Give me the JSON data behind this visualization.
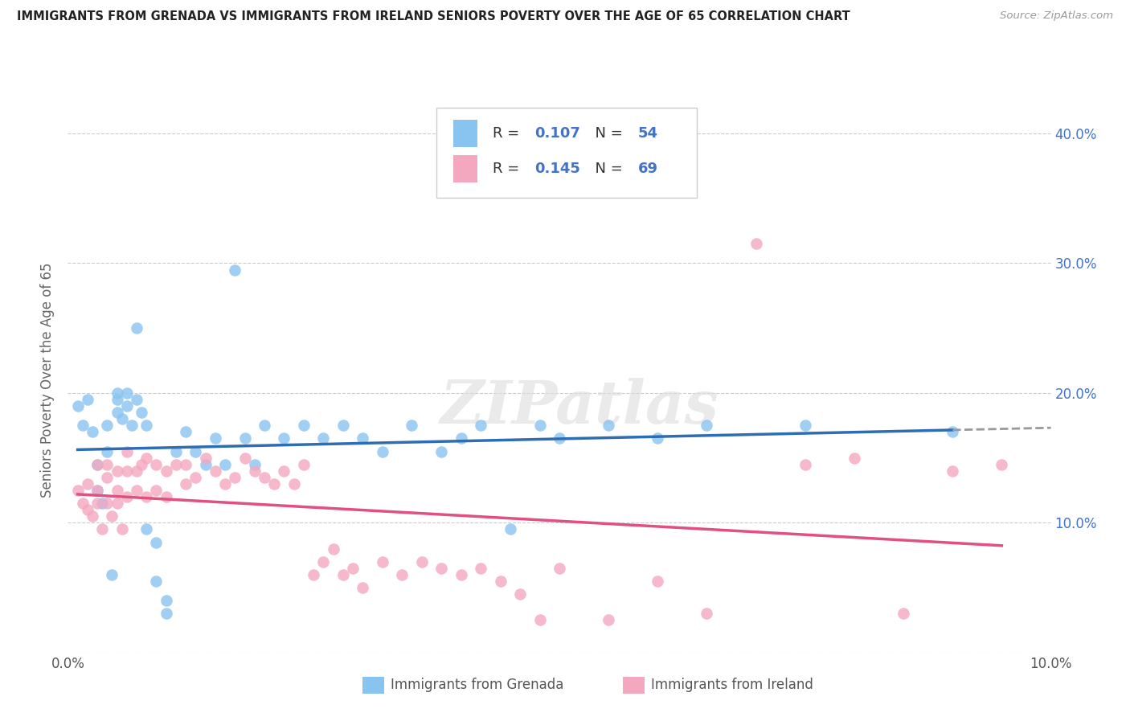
{
  "title": "IMMIGRANTS FROM GRENADA VS IMMIGRANTS FROM IRELAND SENIORS POVERTY OVER THE AGE OF 65 CORRELATION CHART",
  "source": "Source: ZipAtlas.com",
  "ylabel": "Seniors Poverty Over the Age of 65",
  "xlim": [
    0.0,
    0.1
  ],
  "ylim": [
    0.0,
    0.42
  ],
  "ytick_vals": [
    0.0,
    0.1,
    0.2,
    0.3,
    0.4
  ],
  "xtick_vals": [
    0.0,
    0.02,
    0.04,
    0.06,
    0.08,
    0.1
  ],
  "xtick_labels": [
    "0.0%",
    "",
    "",
    "",
    "",
    "10.0%"
  ],
  "right_ytick_labels": [
    "",
    "10.0%",
    "20.0%",
    "30.0%",
    "40.0%"
  ],
  "grenada_color": "#89C4F0",
  "ireland_color": "#F4A8C0",
  "grenada_R": 0.107,
  "grenada_N": 54,
  "ireland_R": 0.145,
  "ireland_N": 69,
  "grenada_line_color": "#2E6DB4",
  "ireland_line_color": "#E05080",
  "trend_dash_color": "#999999",
  "watermark": "ZIPatlas",
  "grenada_x": [
    0.001,
    0.0015,
    0.002,
    0.0025,
    0.003,
    0.003,
    0.0035,
    0.004,
    0.004,
    0.0045,
    0.005,
    0.005,
    0.005,
    0.0055,
    0.006,
    0.006,
    0.0065,
    0.007,
    0.007,
    0.0075,
    0.008,
    0.008,
    0.009,
    0.009,
    0.01,
    0.01,
    0.011,
    0.012,
    0.013,
    0.014,
    0.015,
    0.016,
    0.017,
    0.018,
    0.019,
    0.02,
    0.022,
    0.024,
    0.026,
    0.028,
    0.03,
    0.032,
    0.035,
    0.038,
    0.04,
    0.042,
    0.045,
    0.048,
    0.05,
    0.055,
    0.06,
    0.065,
    0.075,
    0.09
  ],
  "grenada_y": [
    0.19,
    0.175,
    0.195,
    0.17,
    0.145,
    0.125,
    0.115,
    0.175,
    0.155,
    0.06,
    0.2,
    0.195,
    0.185,
    0.18,
    0.2,
    0.19,
    0.175,
    0.25,
    0.195,
    0.185,
    0.175,
    0.095,
    0.085,
    0.055,
    0.04,
    0.03,
    0.155,
    0.17,
    0.155,
    0.145,
    0.165,
    0.145,
    0.295,
    0.165,
    0.145,
    0.175,
    0.165,
    0.175,
    0.165,
    0.175,
    0.165,
    0.155,
    0.175,
    0.155,
    0.165,
    0.175,
    0.095,
    0.175,
    0.165,
    0.175,
    0.165,
    0.175,
    0.175,
    0.17
  ],
  "ireland_x": [
    0.001,
    0.0015,
    0.002,
    0.002,
    0.0025,
    0.003,
    0.003,
    0.003,
    0.0035,
    0.004,
    0.004,
    0.004,
    0.0045,
    0.005,
    0.005,
    0.005,
    0.0055,
    0.006,
    0.006,
    0.006,
    0.007,
    0.007,
    0.0075,
    0.008,
    0.008,
    0.009,
    0.009,
    0.01,
    0.01,
    0.011,
    0.012,
    0.012,
    0.013,
    0.014,
    0.015,
    0.016,
    0.017,
    0.018,
    0.019,
    0.02,
    0.021,
    0.022,
    0.023,
    0.024,
    0.025,
    0.026,
    0.027,
    0.028,
    0.029,
    0.03,
    0.032,
    0.034,
    0.036,
    0.038,
    0.04,
    0.042,
    0.044,
    0.046,
    0.048,
    0.05,
    0.055,
    0.06,
    0.065,
    0.07,
    0.075,
    0.08,
    0.085,
    0.09,
    0.095
  ],
  "ireland_y": [
    0.125,
    0.115,
    0.13,
    0.11,
    0.105,
    0.145,
    0.125,
    0.115,
    0.095,
    0.145,
    0.135,
    0.115,
    0.105,
    0.14,
    0.125,
    0.115,
    0.095,
    0.155,
    0.14,
    0.12,
    0.14,
    0.125,
    0.145,
    0.15,
    0.12,
    0.145,
    0.125,
    0.14,
    0.12,
    0.145,
    0.145,
    0.13,
    0.135,
    0.15,
    0.14,
    0.13,
    0.135,
    0.15,
    0.14,
    0.135,
    0.13,
    0.14,
    0.13,
    0.145,
    0.06,
    0.07,
    0.08,
    0.06,
    0.065,
    0.05,
    0.07,
    0.06,
    0.07,
    0.065,
    0.06,
    0.065,
    0.055,
    0.045,
    0.025,
    0.065,
    0.025,
    0.055,
    0.03,
    0.315,
    0.145,
    0.15,
    0.03,
    0.14,
    0.145
  ]
}
